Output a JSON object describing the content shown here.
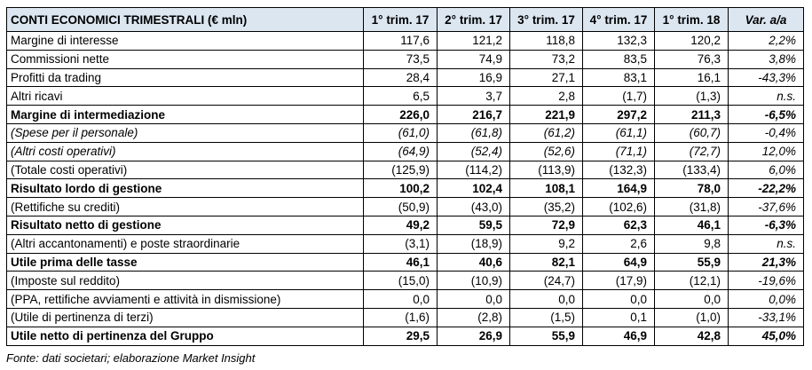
{
  "table": {
    "header": [
      "CONTI ECONOMICI TRIMESTRALI (€ mln)",
      "1° trim. 17",
      "2° trim. 17",
      "3° trim. 17",
      "4° trim. 17",
      "1° trim. 18",
      "Var. a/a"
    ],
    "rows": [
      [
        "Margine di interesse",
        "117,6",
        "121,2",
        "118,8",
        "132,3",
        "120,2",
        "2,2%"
      ],
      [
        "Commissioni nette",
        "73,5",
        "74,9",
        "73,2",
        "83,5",
        "76,3",
        "3,8%"
      ],
      [
        "Profitti da trading",
        "28,4",
        "16,9",
        "27,1",
        "83,1",
        "16,1",
        "-43,3%"
      ],
      [
        "Altri ricavi",
        "6,5",
        "3,7",
        "2,8",
        "(1,7)",
        "(1,3)",
        "n.s."
      ],
      [
        "Margine di intermediazione",
        "226,0",
        "216,7",
        "221,9",
        "297,2",
        "211,3",
        "-6,5%"
      ],
      [
        "(Spese per il personale)",
        "(61,0)",
        "(61,8)",
        "(61,2)",
        "(61,1)",
        "(60,7)",
        "-0,4%"
      ],
      [
        "(Altri costi operativi)",
        "(64,9)",
        "(52,4)",
        "(52,6)",
        "(71,1)",
        "(72,7)",
        "12,0%"
      ],
      [
        "(Totale costi operativi)",
        "(125,9)",
        "(114,2)",
        "(113,9)",
        "(132,3)",
        "(133,4)",
        "6,0%"
      ],
      [
        "Risultato lordo di gestione",
        "100,2",
        "102,4",
        "108,1",
        "164,9",
        "78,0",
        "-22,2%"
      ],
      [
        "(Rettifiche su crediti)",
        "(50,9)",
        "(43,0)",
        "(35,2)",
        "(102,6)",
        "(31,8)",
        "-37,6%"
      ],
      [
        "Risultato netto di gestione",
        "49,2",
        "59,5",
        "72,9",
        "62,3",
        "46,1",
        "-6,3%"
      ],
      [
        "(Altri accantonamenti) e poste straordinarie",
        "(3,1)",
        "(18,9)",
        "9,2",
        "2,6",
        "9,8",
        "n.s."
      ],
      [
        "Utile prima delle tasse",
        "46,1",
        "40,6",
        "82,1",
        "64,9",
        "55,9",
        "21,3%"
      ],
      [
        "(Imposte sul reddito)",
        "(15,0)",
        "(10,9)",
        "(24,7)",
        "(17,9)",
        "(12,1)",
        "-19,6%"
      ],
      [
        "(PPA, rettifiche avviamenti e attività in dismissione)",
        "0,0",
        "0,0",
        "0,0",
        "0,0",
        "0,0",
        "0,0%"
      ],
      [
        "(Utile di pertinenza di terzi)",
        "(1,6)",
        "(2,8)",
        "(1,5)",
        "0,1",
        "(1,0)",
        "-33,1%"
      ],
      [
        "Utile netto di pertinenza del Gruppo",
        "29,5",
        "26,9",
        "55,9",
        "46,9",
        "42,8",
        "45,0%"
      ]
    ]
  },
  "footnote": "Fonte: dati societari; elaborazione Market Insight"
}
